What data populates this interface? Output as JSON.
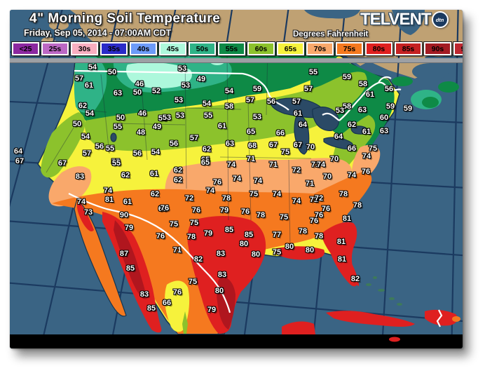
{
  "header": {
    "title": "4\" Morning Soil Temperature",
    "subtitle": "Friday, Sep 05, 2014 - 07:00AM CDT",
    "units_label": "Degrees Fahrenheit",
    "brand": "TELVENT",
    "brand_badge": "dtn"
  },
  "legend": {
    "items": [
      {
        "label": "<25",
        "bg": "#8C28A0",
        "fg": "#000000"
      },
      {
        "label": "25s",
        "bg": "#BC68C4",
        "fg": "#000000"
      },
      {
        "label": "30s",
        "bg": "#F8AEC0",
        "fg": "#000000"
      },
      {
        "label": "35s",
        "bg": "#2B2BC8",
        "fg": "#000000"
      },
      {
        "label": "40s",
        "bg": "#6D9BF8",
        "fg": "#000000"
      },
      {
        "label": "45s",
        "bg": "#ADF8DC",
        "fg": "#000000"
      },
      {
        "label": "50s",
        "bg": "#2FB387",
        "fg": "#000000"
      },
      {
        "label": "55s",
        "bg": "#0E8A46",
        "fg": "#000000"
      },
      {
        "label": "60s",
        "bg": "#8CC22C",
        "fg": "#000000"
      },
      {
        "label": "65s",
        "bg": "#F6F23C",
        "fg": "#000000"
      },
      {
        "label": "70s",
        "bg": "#F9A86B",
        "fg": "#000000"
      },
      {
        "label": "75s",
        "bg": "#F5791F",
        "fg": "#000000"
      },
      {
        "label": "80s",
        "bg": "#DF2020",
        "fg": "#000000"
      },
      {
        "label": "85s",
        "bg": "#C52222",
        "fg": "#000000"
      },
      {
        "label": "90s",
        "bg": "#A31B22",
        "fg": "#000000"
      },
      {
        "label": "95s",
        "bg": "#BC2730",
        "fg": "#000000"
      },
      {
        "label": ">100",
        "bg": "#AB1320",
        "fg": "#FFFFFF"
      }
    ]
  },
  "palette": {
    "ocean": "#3A6484",
    "canada_land": "#BFA173",
    "graticule": "#1B3A60",
    "separator_bar": "#9DA0A4",
    "map_bottom_band": "#000000"
  },
  "map": {
    "type": "contour-filled temperature map",
    "region": "United States (with S. Canada, Mexico, Caribbean)",
    "stations": [
      [
        54,
        118,
        82
      ],
      [
        50,
        146,
        89
      ],
      [
        57,
        99,
        98
      ],
      [
        61,
        113,
        108
      ],
      [
        63,
        154,
        119
      ],
      [
        46,
        185,
        106
      ],
      [
        50,
        182,
        118
      ],
      [
        52,
        209,
        116
      ],
      [
        62,
        104,
        137
      ],
      [
        54,
        114,
        148
      ],
      [
        50,
        158,
        154
      ],
      [
        46,
        189,
        148
      ],
      [
        55,
        154,
        167
      ],
      [
        53,
        218,
        155
      ],
      [
        49,
        210,
        167
      ],
      [
        48,
        187,
        175
      ],
      [
        50,
        96,
        163
      ],
      [
        54,
        108,
        181
      ],
      [
        56,
        128,
        195
      ],
      [
        55,
        143,
        198
      ],
      [
        64,
        12,
        202
      ],
      [
        67,
        14,
        216
      ],
      [
        57,
        110,
        205
      ],
      [
        56,
        182,
        205
      ],
      [
        54,
        208,
        203
      ],
      [
        55,
        151,
        217
      ],
      [
        67,
        75,
        219
      ],
      [
        53,
        246,
        84
      ],
      [
        49,
        273,
        99
      ],
      [
        53,
        251,
        108
      ],
      [
        54,
        313,
        116
      ],
      [
        59,
        353,
        113
      ],
      [
        55,
        433,
        89
      ],
      [
        57,
        426,
        113
      ],
      [
        53,
        241,
        129
      ],
      [
        54,
        281,
        134
      ],
      [
        58,
        313,
        138
      ],
      [
        57,
        343,
        129
      ],
      [
        56,
        373,
        131
      ],
      [
        57,
        409,
        131
      ],
      [
        53,
        243,
        151
      ],
      [
        53,
        224,
        154
      ],
      [
        55,
        283,
        151
      ],
      [
        53,
        353,
        153
      ],
      [
        61,
        411,
        148
      ],
      [
        61,
        303,
        166
      ],
      [
        64,
        418,
        164
      ],
      [
        57,
        263,
        183
      ],
      [
        65,
        344,
        174
      ],
      [
        66,
        386,
        176
      ],
      [
        56,
        234,
        191
      ],
      [
        62,
        281,
        199
      ],
      [
        63,
        314,
        191
      ],
      [
        68,
        346,
        194
      ],
      [
        67,
        376,
        193
      ],
      [
        67,
        411,
        193
      ],
      [
        70,
        429,
        196
      ],
      [
        75,
        393,
        203
      ],
      [
        65,
        279,
        214
      ],
      [
        71,
        344,
        213
      ],
      [
        59,
        481,
        96
      ],
      [
        58,
        504,
        106
      ],
      [
        56,
        541,
        113
      ],
      [
        61,
        514,
        121
      ],
      [
        59,
        543,
        138
      ],
      [
        59,
        568,
        141
      ],
      [
        58,
        481,
        138
      ],
      [
        53,
        471,
        144
      ],
      [
        63,
        503,
        143
      ],
      [
        60,
        534,
        154
      ],
      [
        62,
        488,
        164
      ],
      [
        64,
        469,
        181
      ],
      [
        61,
        509,
        174
      ],
      [
        63,
        534,
        173
      ],
      [
        66,
        488,
        198
      ],
      [
        75,
        518,
        198
      ],
      [
        70,
        463,
        213
      ],
      [
        74,
        509,
        209
      ],
      [
        55,
        152,
        219
      ],
      [
        83,
        100,
        238
      ],
      [
        62,
        165,
        236
      ],
      [
        61,
        206,
        234
      ],
      [
        74,
        140,
        258
      ],
      [
        62,
        207,
        263
      ],
      [
        74,
        102,
        274
      ],
      [
        81,
        142,
        271
      ],
      [
        61,
        168,
        274
      ],
      [
        66,
        218,
        284
      ],
      [
        73,
        112,
        289
      ],
      [
        90,
        163,
        293
      ],
      [
        79,
        170,
        311
      ],
      [
        76,
        215,
        323
      ],
      [
        87,
        163,
        348
      ],
      [
        85,
        172,
        369
      ],
      [
        83,
        192,
        406
      ],
      [
        85,
        202,
        426
      ],
      [
        66,
        224,
        418
      ],
      [
        65,
        279,
        218
      ],
      [
        74,
        316,
        221
      ],
      [
        71,
        376,
        221
      ],
      [
        71,
        436,
        221
      ],
      [
        62,
        240,
        229
      ],
      [
        62,
        240,
        243
      ],
      [
        72,
        409,
        229
      ],
      [
        76,
        296,
        246
      ],
      [
        74,
        324,
        241
      ],
      [
        74,
        354,
        244
      ],
      [
        71,
        428,
        248
      ],
      [
        74,
        286,
        258
      ],
      [
        75,
        348,
        263
      ],
      [
        74,
        381,
        263
      ],
      [
        72,
        256,
        269
      ],
      [
        78,
        309,
        269
      ],
      [
        74,
        409,
        273
      ],
      [
        72,
        434,
        271
      ],
      [
        76,
        221,
        283
      ],
      [
        76,
        266,
        286
      ],
      [
        79,
        306,
        286
      ],
      [
        76,
        336,
        288
      ],
      [
        78,
        358,
        293
      ],
      [
        75,
        391,
        296
      ],
      [
        76,
        434,
        301
      ],
      [
        75,
        234,
        306
      ],
      [
        75,
        263,
        304
      ],
      [
        85,
        313,
        314
      ],
      [
        79,
        283,
        319
      ],
      [
        78,
        259,
        324
      ],
      [
        85,
        341,
        321
      ],
      [
        77,
        381,
        321
      ],
      [
        78,
        418,
        316
      ],
      [
        78,
        441,
        323
      ],
      [
        71,
        239,
        343
      ],
      [
        80,
        334,
        334
      ],
      [
        83,
        301,
        348
      ],
      [
        80,
        351,
        349
      ],
      [
        75,
        381,
        346
      ],
      [
        80,
        399,
        338
      ],
      [
        80,
        428,
        343
      ],
      [
        82,
        269,
        356
      ],
      [
        83,
        303,
        378
      ],
      [
        80,
        299,
        401
      ],
      [
        75,
        261,
        388
      ],
      [
        76,
        239,
        403
      ],
      [
        79,
        288,
        428
      ],
      [
        74,
        444,
        221
      ],
      [
        70,
        453,
        238
      ],
      [
        74,
        488,
        236
      ],
      [
        76,
        508,
        231
      ],
      [
        78,
        476,
        263
      ],
      [
        72,
        441,
        269
      ],
      [
        78,
        496,
        279
      ],
      [
        76,
        451,
        284
      ],
      [
        76,
        441,
        293
      ],
      [
        81,
        481,
        298
      ],
      [
        81,
        473,
        331
      ],
      [
        81,
        474,
        356
      ],
      [
        82,
        493,
        384
      ]
    ]
  }
}
